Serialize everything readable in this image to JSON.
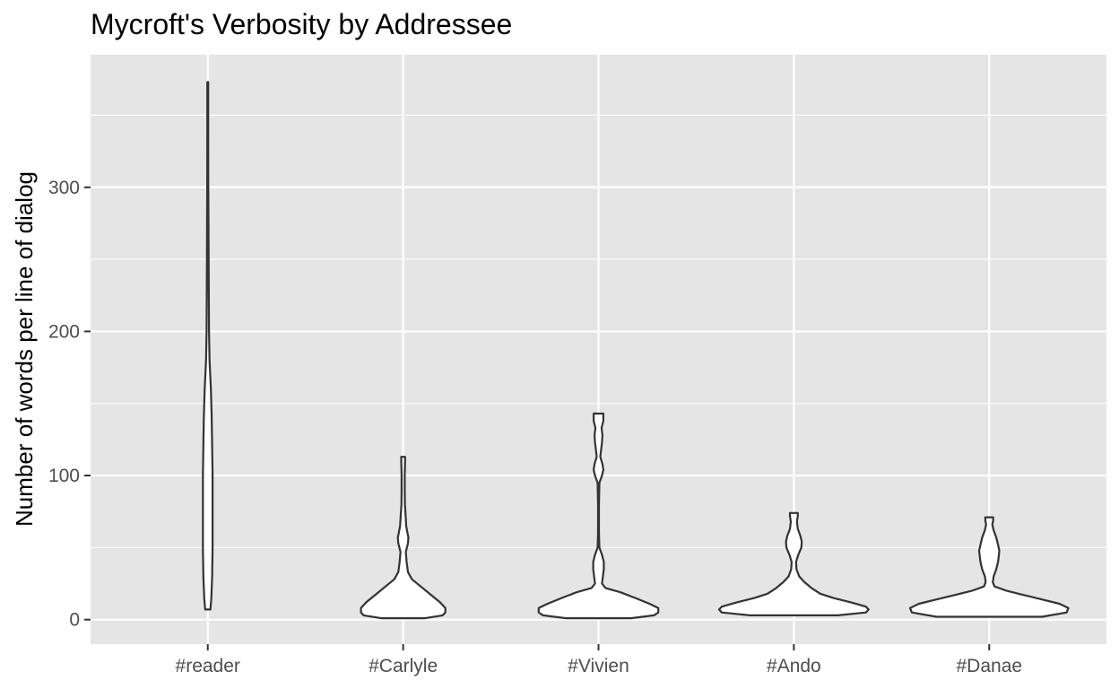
{
  "chart_data": {
    "type": "violin",
    "title": "Mycroft's Verbosity by Addressee",
    "xlabel": "",
    "ylabel": "Number of words per line of dialog",
    "ylim": [
      -17,
      392
    ],
    "y_ticks": [
      0,
      100,
      200,
      300
    ],
    "y_tick_labels": [
      "0",
      "100",
      "200",
      "300"
    ],
    "grid": true,
    "panel_color": "#e5e5e5",
    "grid_color": "#ffffff",
    "violin_fill": "#ffffff",
    "violin_stroke": "#333333",
    "categories": [
      "#reader",
      "#Carlyle",
      "#Vivien",
      "#Ando",
      "#Danae"
    ],
    "series": [
      {
        "name": "#reader",
        "y_range": [
          7,
          373
        ],
        "profile": [
          [
            7,
            0.03
          ],
          [
            15,
            0.04
          ],
          [
            30,
            0.05
          ],
          [
            50,
            0.055
          ],
          [
            80,
            0.055
          ],
          [
            100,
            0.055
          ],
          [
            120,
            0.05
          ],
          [
            140,
            0.045
          ],
          [
            160,
            0.035
          ],
          [
            180,
            0.02
          ],
          [
            200,
            0.014
          ],
          [
            250,
            0.01
          ],
          [
            300,
            0.006
          ],
          [
            340,
            0.005
          ],
          [
            373,
            0.005
          ]
        ]
      },
      {
        "name": "#Carlyle",
        "y_range": [
          1,
          113
        ],
        "profile": [
          [
            1,
            0.25
          ],
          [
            3,
            0.45
          ],
          [
            5,
            0.48
          ],
          [
            8,
            0.48
          ],
          [
            12,
            0.42
          ],
          [
            17,
            0.32
          ],
          [
            23,
            0.2
          ],
          [
            28,
            0.1
          ],
          [
            33,
            0.055
          ],
          [
            40,
            0.04
          ],
          [
            47,
            0.03
          ],
          [
            53,
            0.055
          ],
          [
            57,
            0.06
          ],
          [
            60,
            0.05
          ],
          [
            65,
            0.035
          ],
          [
            70,
            0.03
          ],
          [
            80,
            0.02
          ],
          [
            90,
            0.018
          ],
          [
            100,
            0.018
          ],
          [
            110,
            0.022
          ],
          [
            113,
            0.022
          ]
        ]
      },
      {
        "name": "#Vivien",
        "y_range": [
          1,
          143
        ],
        "profile": [
          [
            1,
            0.37
          ],
          [
            3,
            0.63
          ],
          [
            5,
            0.68
          ],
          [
            8,
            0.68
          ],
          [
            11,
            0.58
          ],
          [
            15,
            0.42
          ],
          [
            19,
            0.25
          ],
          [
            22,
            0.08
          ],
          [
            25,
            0.04
          ],
          [
            30,
            0.05
          ],
          [
            35,
            0.06
          ],
          [
            40,
            0.06
          ],
          [
            45,
            0.04
          ],
          [
            50,
            0.01
          ],
          [
            60,
            0.005
          ],
          [
            80,
            0.005
          ],
          [
            95,
            0.01
          ],
          [
            100,
            0.04
          ],
          [
            104,
            0.055
          ],
          [
            108,
            0.045
          ],
          [
            113,
            0.02
          ],
          [
            118,
            0.03
          ],
          [
            123,
            0.04
          ],
          [
            128,
            0.045
          ],
          [
            133,
            0.035
          ],
          [
            138,
            0.055
          ],
          [
            143,
            0.055
          ]
        ]
      },
      {
        "name": "#Ando",
        "y_range": [
          3,
          74
        ],
        "profile": [
          [
            3,
            0.5
          ],
          [
            5,
            0.82
          ],
          [
            7,
            0.85
          ],
          [
            9,
            0.82
          ],
          [
            12,
            0.65
          ],
          [
            15,
            0.45
          ],
          [
            18,
            0.3
          ],
          [
            22,
            0.2
          ],
          [
            26,
            0.12
          ],
          [
            30,
            0.06
          ],
          [
            35,
            0.03
          ],
          [
            40,
            0.025
          ],
          [
            45,
            0.05
          ],
          [
            50,
            0.085
          ],
          [
            54,
            0.09
          ],
          [
            58,
            0.075
          ],
          [
            63,
            0.045
          ],
          [
            68,
            0.035
          ],
          [
            72,
            0.045
          ],
          [
            74,
            0.045
          ]
        ]
      },
      {
        "name": "#Danae",
        "y_range": [
          2,
          71
        ],
        "profile": [
          [
            2,
            0.6
          ],
          [
            5,
            0.88
          ],
          [
            8,
            0.9
          ],
          [
            11,
            0.8
          ],
          [
            14,
            0.6
          ],
          [
            17,
            0.4
          ],
          [
            20,
            0.2
          ],
          [
            23,
            0.06
          ],
          [
            26,
            0.04
          ],
          [
            30,
            0.05
          ],
          [
            35,
            0.08
          ],
          [
            40,
            0.1
          ],
          [
            45,
            0.11
          ],
          [
            48,
            0.115
          ],
          [
            52,
            0.1
          ],
          [
            57,
            0.08
          ],
          [
            62,
            0.05
          ],
          [
            66,
            0.035
          ],
          [
            69,
            0.045
          ],
          [
            71,
            0.045
          ]
        ]
      }
    ]
  }
}
